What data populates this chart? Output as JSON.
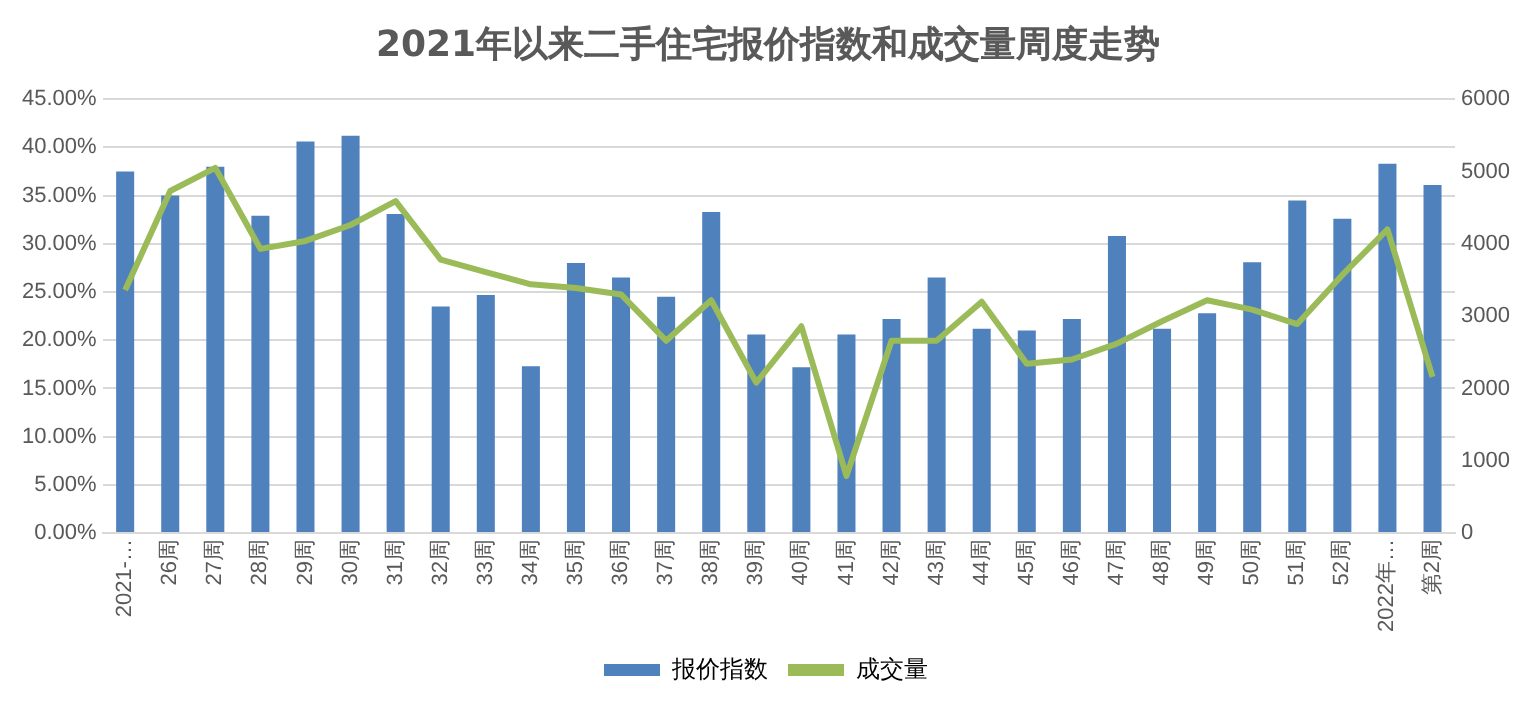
{
  "chart_data": {
    "type": "bar",
    "title": "2021年以来二手住宅报价指数和成交量周度走势",
    "categories": [
      "2021-…",
      "26周",
      "27周",
      "28周",
      "29周",
      "30周",
      "31周",
      "32周",
      "33周",
      "34周",
      "35周",
      "36周",
      "37周",
      "38周",
      "39周",
      "40周",
      "41周",
      "42周",
      "43周",
      "44周",
      "45周",
      "46周",
      "47周",
      "48周",
      "49周",
      "50周",
      "51周",
      "52周",
      "2022年…",
      "第2周"
    ],
    "series": [
      {
        "name": "报价指数",
        "color": "#4f81bd",
        "values": [
          37.5,
          35.0,
          38.0,
          32.9,
          40.6,
          41.2,
          33.1,
          23.5,
          24.7,
          17.3,
          28.0,
          26.5,
          24.5,
          33.3,
          20.6,
          17.2,
          20.6,
          22.2,
          26.5,
          21.2,
          21.0,
          22.2,
          30.8,
          21.2,
          22.8,
          28.1,
          34.5,
          32.6,
          38.3,
          36.1
        ]
      },
      {
        "name": "成交量",
        "type": "line",
        "axis": "y2",
        "color": "#9bbb59",
        "values": [
          3360,
          4730,
          5050,
          3930,
          4040,
          4260,
          4590,
          3780,
          3610,
          3440,
          3390,
          3300,
          2660,
          3220,
          2080,
          2860,
          790,
          2660,
          2660,
          3200,
          2340,
          2400,
          2620,
          2930,
          3220,
          3090,
          2890,
          3570,
          4200,
          2160
        ]
      }
    ],
    "ylim": [
      0,
      45
    ],
    "yticks": [
      {
        "value": 0,
        "label": "0.00%"
      },
      {
        "value": 5,
        "label": "5.00%"
      },
      {
        "value": 10,
        "label": "10.00%"
      },
      {
        "value": 15,
        "label": "15.00%"
      },
      {
        "value": 20,
        "label": "20.00%"
      },
      {
        "value": 25,
        "label": "25.00%"
      },
      {
        "value": 30,
        "label": "30.00%"
      },
      {
        "value": 35,
        "label": "35.00%"
      },
      {
        "value": 40,
        "label": "40.00%"
      },
      {
        "value": 45,
        "label": "45.00%"
      }
    ],
    "y2lim": [
      0,
      6000
    ],
    "y2ticks": [
      0,
      1000,
      2000,
      3000,
      4000,
      5000,
      6000
    ],
    "grid": "y",
    "legend": "bottom",
    "marker": "none",
    "line_style": "solid"
  }
}
